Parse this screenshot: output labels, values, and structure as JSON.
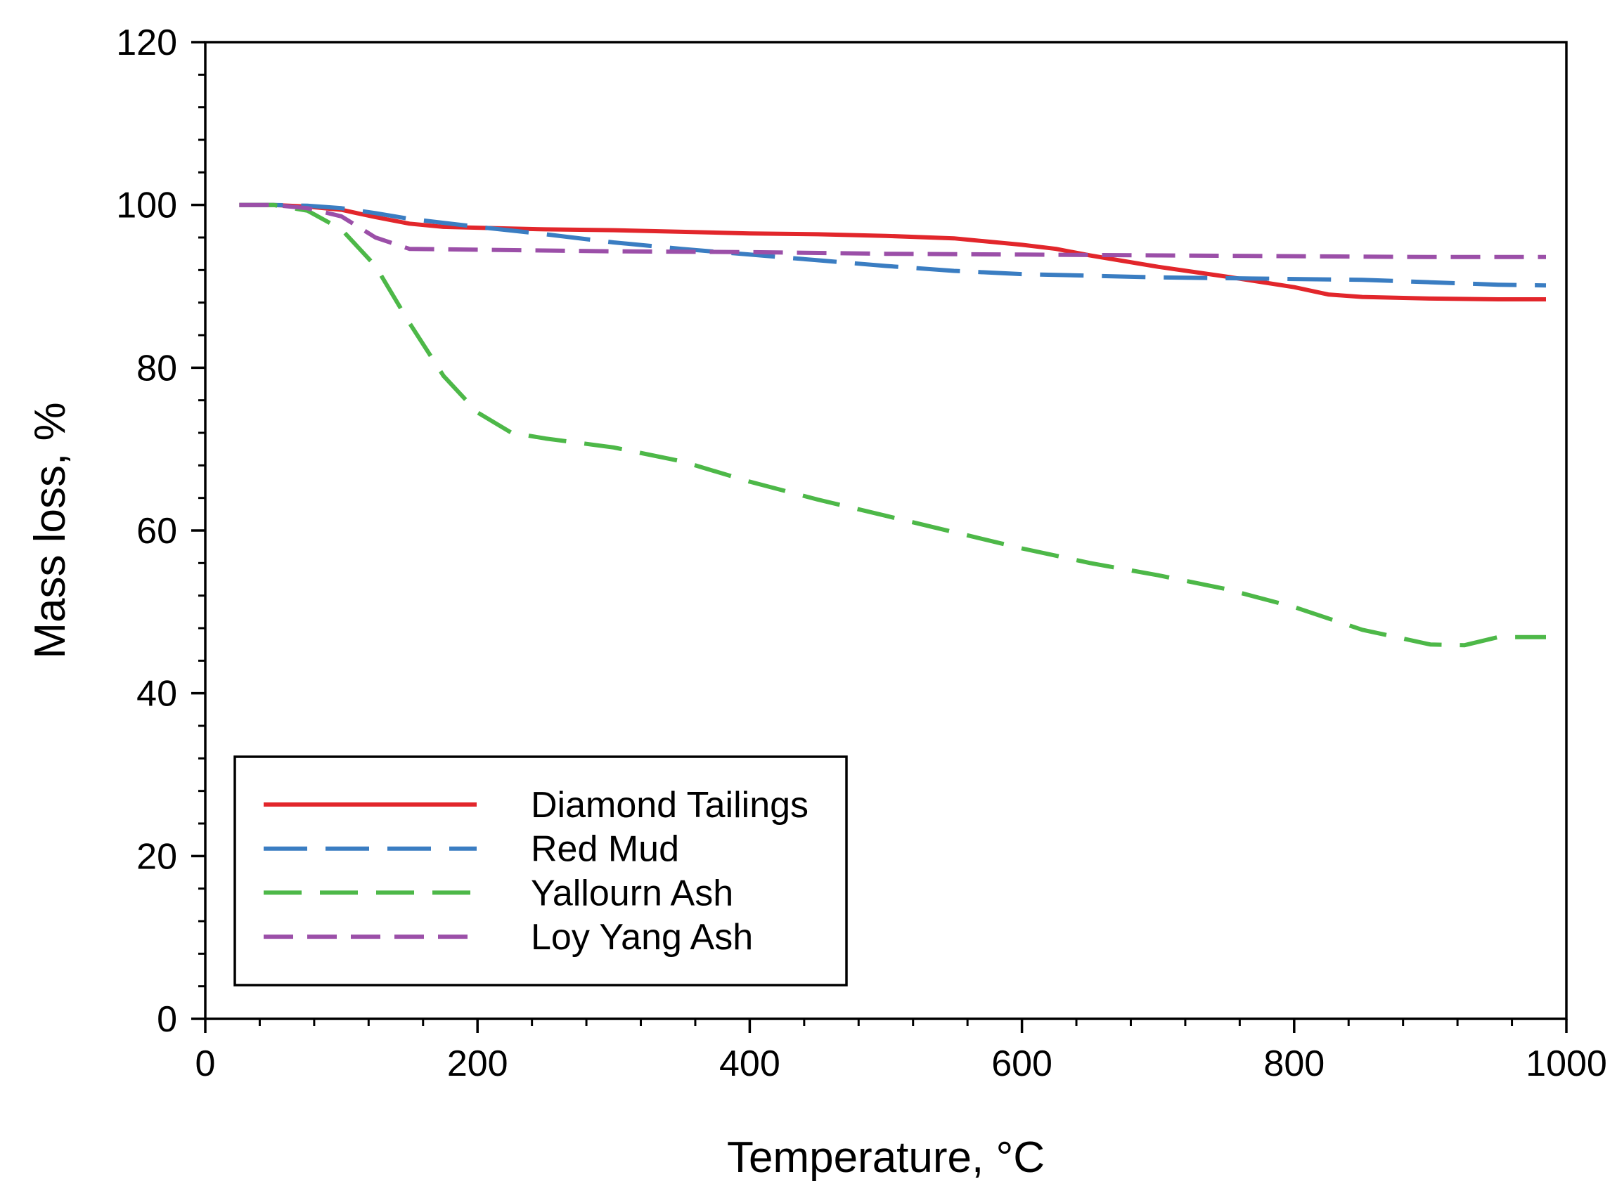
{
  "chart_data": {
    "type": "line",
    "title": "",
    "xlabel": "Temperature, °C",
    "ylabel": "Mass loss, %",
    "xlim": [
      0,
      1000
    ],
    "ylim": [
      0,
      120
    ],
    "x_ticks": [
      0,
      200,
      400,
      600,
      800,
      1000
    ],
    "y_ticks": [
      0,
      20,
      40,
      60,
      80,
      100,
      120
    ],
    "x_tick_labels": [
      "0",
      "200",
      "400",
      "600",
      "800",
      "1000"
    ],
    "y_tick_labels": [
      "0",
      "20",
      "40",
      "60",
      "80",
      "100",
      "120"
    ],
    "grid": false,
    "legend_position": "lower-left",
    "series": [
      {
        "name": "Diamond Tailings",
        "color": "#e2262b",
        "style": "solid",
        "x": [
          25,
          50,
          75,
          100,
          125,
          150,
          175,
          200,
          250,
          300,
          350,
          400,
          450,
          500,
          550,
          600,
          625,
          650,
          700,
          750,
          800,
          825,
          850,
          900,
          950,
          985
        ],
        "y": [
          100,
          100,
          99.8,
          99.4,
          98.5,
          97.7,
          97.3,
          97.2,
          97.0,
          96.9,
          96.7,
          96.5,
          96.4,
          96.2,
          95.9,
          95.1,
          94.6,
          93.8,
          92.4,
          91.2,
          89.9,
          89.0,
          88.7,
          88.5,
          88.4,
          88.4
        ]
      },
      {
        "name": "Red Mud",
        "color": "#3a7dc2",
        "style": "dashed",
        "x": [
          25,
          50,
          75,
          100,
          125,
          150,
          200,
          250,
          300,
          350,
          400,
          450,
          500,
          550,
          600,
          650,
          700,
          750,
          800,
          850,
          900,
          950,
          985
        ],
        "y": [
          100,
          100,
          99.9,
          99.6,
          99.0,
          98.3,
          97.3,
          96.4,
          95.4,
          94.6,
          93.9,
          93.2,
          92.5,
          91.9,
          91.5,
          91.3,
          91.1,
          91.0,
          90.9,
          90.8,
          90.5,
          90.2,
          90.1
        ]
      },
      {
        "name": "Yallourn Ash",
        "color": "#4db848",
        "style": "dashed",
        "x": [
          25,
          50,
          75,
          100,
          125,
          150,
          175,
          200,
          225,
          250,
          300,
          350,
          400,
          450,
          500,
          550,
          600,
          650,
          700,
          750,
          800,
          850,
          900,
          925,
          950,
          985
        ],
        "y": [
          100,
          100,
          99.3,
          97.0,
          92.5,
          85.5,
          79.0,
          74.5,
          72.0,
          71.3,
          70.2,
          68.5,
          66.0,
          63.8,
          61.8,
          59.8,
          57.8,
          56.0,
          54.5,
          52.8,
          50.6,
          47.8,
          46.0,
          45.9,
          46.9,
          46.9
        ]
      },
      {
        "name": "Loy Yang Ash",
        "color": "#9b4fa8",
        "style": "dashed",
        "x": [
          25,
          50,
          75,
          100,
          125,
          150,
          200,
          300,
          400,
          500,
          600,
          700,
          800,
          900,
          985
        ],
        "y": [
          100,
          100,
          99.6,
          98.6,
          96.0,
          94.6,
          94.5,
          94.3,
          94.2,
          94.0,
          93.9,
          93.8,
          93.7,
          93.6,
          93.6
        ]
      }
    ]
  }
}
